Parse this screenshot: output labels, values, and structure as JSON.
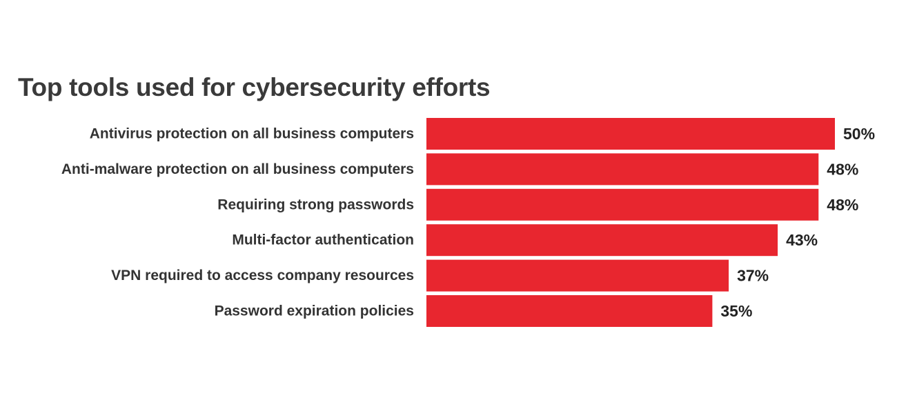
{
  "chart_data": {
    "type": "bar",
    "orientation": "horizontal",
    "title": "Top tools used for cybersecurity efforts",
    "categories": [
      "Antivirus protection on all business computers",
      "Anti-malware protection on all business computers",
      "Requiring strong passwords",
      "Multi-factor authentication",
      "VPN required to access company resources",
      "Password expiration policies"
    ],
    "values": [
      50,
      48,
      48,
      43,
      37,
      35
    ],
    "value_labels": [
      "50%",
      "48%",
      "48%",
      "43%",
      "37%",
      "35%"
    ],
    "unit": "%",
    "xlim": [
      0,
      50
    ],
    "grid": false,
    "legend": "none",
    "bar_color": "#e8262f"
  }
}
